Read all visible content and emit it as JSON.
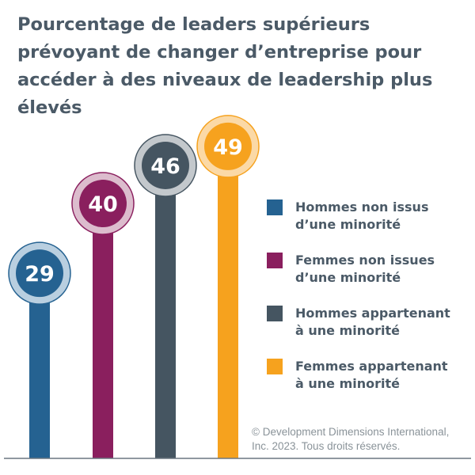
{
  "colors": {
    "title": "#4b5a67",
    "baseline": "#6b7780"
  },
  "chart_data": {
    "type": "bar",
    "title": "Pourcentage de leaders supérieurs prévoyant de changer d’entreprise pour accéder à des niveaux de leadership plus élevés",
    "categories": [
      "Hommes non issus\nd’une minorité",
      "Femmes non issues\nd’une minorité",
      "Hommes appartenant\nà une minorité",
      "Femmes appartenant\nà une minorité"
    ],
    "values": [
      29,
      40,
      46,
      49
    ],
    "colors": [
      "#256291",
      "#8a1f5e",
      "#455561",
      "#f6a21e"
    ],
    "ring_colors": [
      "#b9cfe0",
      "#dcbccd",
      "#c3c8cc",
      "#fbd9a6"
    ],
    "legend_position": "right",
    "grid": false
  },
  "copyright": "© Development Dimensions International,\nInc. 2023. Tous droits réservés."
}
